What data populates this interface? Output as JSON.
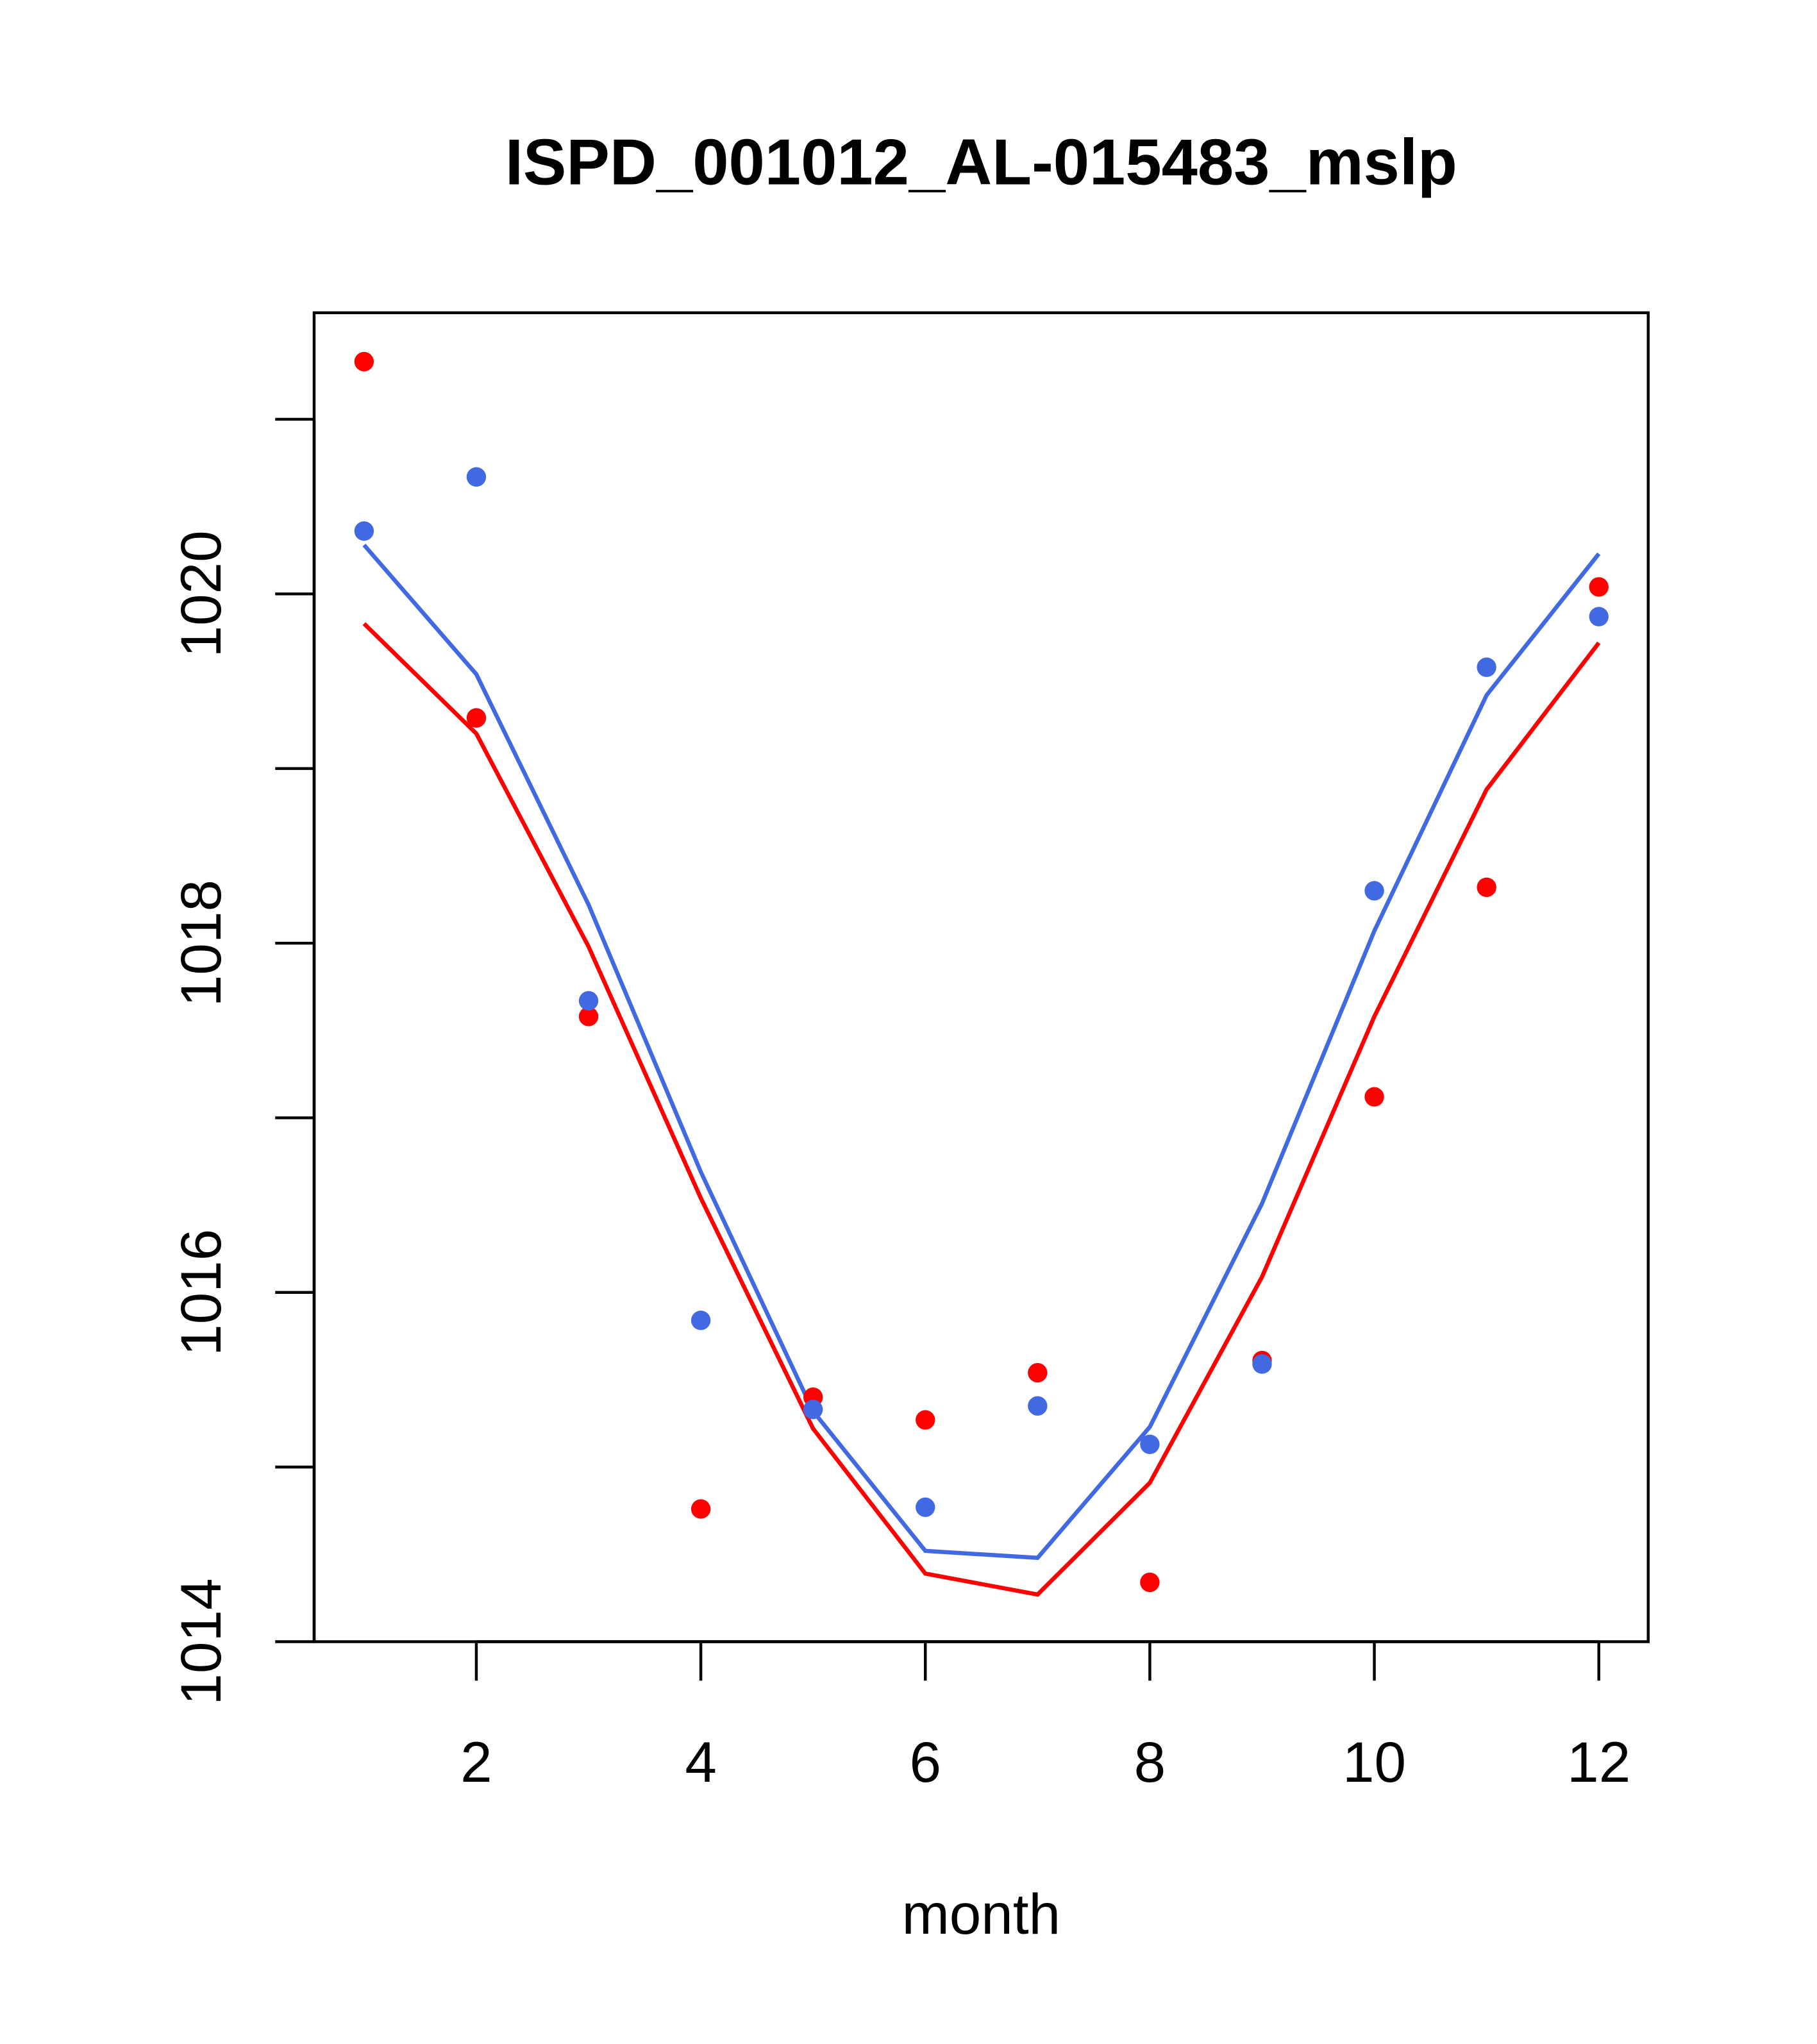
{
  "chart_data": {
    "type": "line",
    "title": "ISPD_001012_AL-015483_mslp",
    "xlabel": "month",
    "ylabel": "",
    "xlim": [
      0.555,
      12.44
    ],
    "ylim": [
      1014,
      1021.61
    ],
    "x_ticks": [
      2,
      4,
      6,
      8,
      10,
      12
    ],
    "x_tick_labels": [
      "2",
      "4",
      "6",
      "8",
      "10",
      "12"
    ],
    "y_ticks": [
      1014,
      1015,
      1016,
      1017,
      1018,
      1019,
      1020,
      1021
    ],
    "y_tick_labels": [
      "1014",
      "",
      "1016",
      "",
      "1018",
      "",
      "1020",
      ""
    ],
    "grid": false,
    "x": [
      1,
      2,
      3,
      4,
      5,
      6,
      7,
      8,
      9,
      10,
      11,
      12
    ],
    "series": [
      {
        "name": "red points",
        "kind": "points",
        "color": "#ff0000",
        "values": [
          1021.33,
          1019.29,
          1017.58,
          1014.76,
          1015.4,
          1015.27,
          1015.54,
          1014.34,
          1015.61,
          1017.12,
          1018.32,
          1020.04
        ]
      },
      {
        "name": "blue points",
        "kind": "points",
        "color": "#4169e1",
        "values": [
          1020.36,
          1020.67,
          1017.67,
          1015.84,
          1015.33,
          1014.77,
          1015.35,
          1015.13,
          1015.59,
          1018.3,
          1019.58,
          1019.87
        ]
      },
      {
        "name": "red line",
        "kind": "line",
        "color": "#ff0000",
        "values": [
          1019.83,
          1019.2,
          1017.98,
          1016.54,
          1015.22,
          1014.39,
          1014.27,
          1014.91,
          1016.09,
          1017.58,
          1018.88,
          1019.72
        ]
      },
      {
        "name": "blue line",
        "kind": "line",
        "color": "#4169e1",
        "values": [
          1020.28,
          1019.54,
          1018.22,
          1016.69,
          1015.32,
          1014.52,
          1014.48,
          1015.23,
          1016.51,
          1018.07,
          1019.42,
          1020.23
        ]
      }
    ]
  }
}
